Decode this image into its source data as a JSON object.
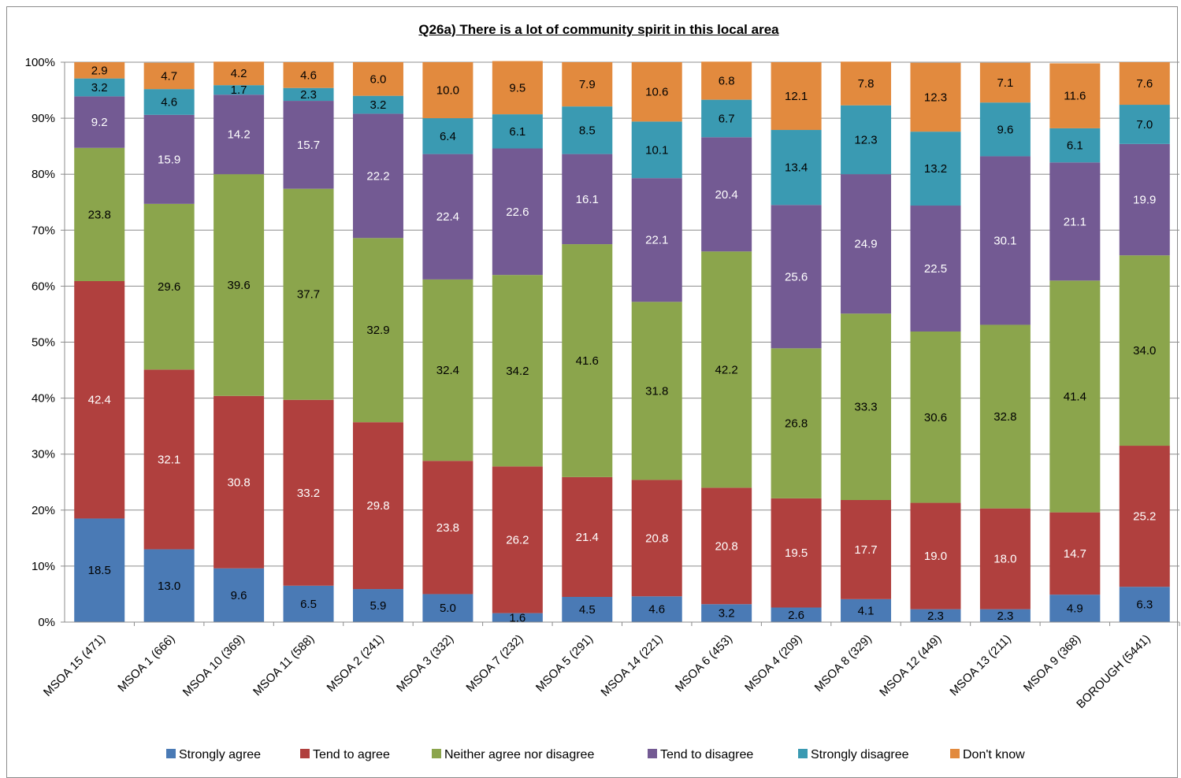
{
  "chart_data": {
    "type": "bar",
    "stacked": true,
    "title": "Q26a) There is a lot of community spirit in this local area",
    "xlabel": "",
    "ylabel": "",
    "ylim": [
      0,
      100
    ],
    "yticks": [
      "0%",
      "10%",
      "20%",
      "30%",
      "40%",
      "50%",
      "60%",
      "70%",
      "80%",
      "90%",
      "100%"
    ],
    "grid": true,
    "legend_position": "bottom",
    "categories": [
      "MSOA 15 (471)",
      "MSOA 1 (666)",
      "MSOA 10 (369)",
      "MSOA 11 (588)",
      "MSOA 2 (241)",
      "MSOA 3 (332)",
      "MSOA 7 (232)",
      "MSOA 5 (291)",
      "MSOA 14 (221)",
      "MSOA 6 (453)",
      "MSOA 4 (209)",
      "MSOA 8 (329)",
      "MSOA 12 (449)",
      "MSOA 13 (211)",
      "MSOA 9 (368)",
      "BOROUGH (5441)"
    ],
    "series": [
      {
        "name": "Strongly agree",
        "color": "#4a7ab5",
        "label_color": "#000000",
        "values": [
          18.5,
          13.0,
          9.6,
          6.5,
          5.9,
          5.0,
          1.6,
          4.5,
          4.6,
          3.2,
          2.6,
          4.1,
          2.3,
          2.3,
          4.9,
          6.3
        ],
        "labels": [
          "18.5",
          "13.0",
          "9.6",
          "6.5",
          "5.9",
          "5.0",
          "1.6",
          "4.5",
          "4.6",
          "3.2",
          "2.6",
          "4.1",
          "2.3",
          "2.3",
          "4.9",
          "6.3"
        ]
      },
      {
        "name": "Tend to agree",
        "color": "#b0403e",
        "label_color": "#ffffff",
        "values": [
          42.4,
          32.1,
          30.8,
          33.2,
          29.8,
          23.8,
          26.2,
          21.4,
          20.8,
          20.8,
          19.5,
          17.7,
          19.0,
          18.0,
          14.7,
          25.2
        ],
        "labels": [
          "42.4",
          "32.1",
          "30.8",
          "33.2",
          "29.8",
          "23.8",
          "26.2",
          "21.4",
          "20.8",
          "20.8",
          "19.5",
          "17.7",
          "19.0",
          "18.0",
          "14.7",
          "25.2"
        ]
      },
      {
        "name": "Neither agree nor disagree",
        "color": "#8ba54c",
        "label_color": "#000000",
        "values": [
          23.8,
          29.6,
          39.6,
          37.7,
          32.9,
          32.4,
          34.2,
          41.6,
          31.8,
          42.2,
          26.8,
          33.3,
          30.6,
          32.8,
          41.4,
          34.0
        ],
        "labels": [
          "23.8",
          "29.6",
          "39.6",
          "37.7",
          "32.9",
          "32.4",
          "34.2",
          "41.6",
          "31.8",
          "42.2",
          "26.8",
          "33.3",
          "30.6",
          "32.8",
          "41.4",
          "34.0"
        ]
      },
      {
        "name": "Tend to disagree",
        "color": "#735a93",
        "label_color": "#ffffff",
        "values": [
          9.2,
          15.9,
          14.2,
          15.7,
          22.2,
          22.4,
          22.6,
          16.1,
          22.1,
          20.4,
          25.6,
          24.9,
          22.5,
          30.1,
          21.1,
          19.9
        ],
        "labels": [
          "9.2",
          "15.9",
          "14.2",
          "15.7",
          "22.2",
          "22.4",
          "22.6",
          "16.1",
          "22.1",
          "20.4",
          "25.6",
          "24.9",
          "22.5",
          "30.1",
          "21.1",
          "19.9"
        ]
      },
      {
        "name": "Strongly disagree",
        "color": "#3a9ab2",
        "label_color": "#000000",
        "values": [
          3.2,
          4.6,
          1.7,
          2.3,
          3.2,
          6.4,
          6.1,
          8.5,
          10.1,
          6.7,
          13.4,
          12.3,
          13.2,
          9.6,
          6.1,
          7.0
        ],
        "labels": [
          "3.2",
          "4.6",
          "1.7",
          "2.3",
          "3.2",
          "6.4",
          "6.1",
          "8.5",
          "10.1",
          "6.7",
          "13.4",
          "12.3",
          "13.2",
          "9.6",
          "6.1",
          "7.0"
        ]
      },
      {
        "name": "Don't know",
        "color": "#e28a3e",
        "label_color": "#000000",
        "values": [
          2.9,
          4.7,
          4.2,
          4.6,
          6.0,
          10.0,
          9.5,
          7.9,
          10.6,
          6.8,
          12.1,
          7.8,
          12.3,
          7.1,
          11.6,
          7.6
        ],
        "labels": [
          "2.9",
          "4.7",
          "4.2",
          "4.6",
          "6.0",
          "10.0",
          "9.5",
          "7.9",
          "10.6",
          "6.8",
          "12.1",
          "7.8",
          "12.3",
          "7.1",
          "11.6",
          "7.6"
        ]
      }
    ]
  }
}
